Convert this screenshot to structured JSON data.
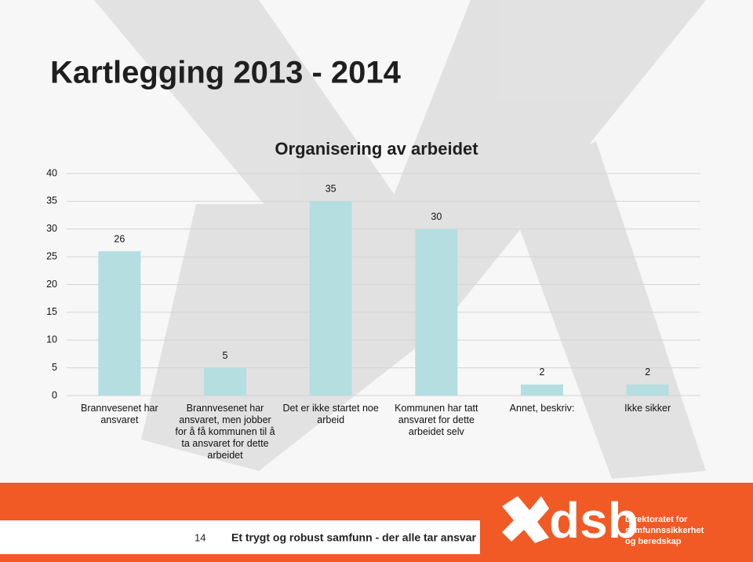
{
  "slide_title": "Kartlegging 2013 - 2014",
  "chart_data": {
    "type": "bar",
    "title": "Organisering av arbeidet",
    "categories": [
      "Brannvesenet har ansvaret",
      "Brannvesenet har ansvaret, men jobber for å få kommunen til å ta ansvaret for dette arbeidet",
      "Det er ikke startet noe arbeid",
      "Kommunen har tatt ansvaret for dette arbeidet selv",
      "Annet, beskriv:",
      "Ikke sikker"
    ],
    "values": [
      26,
      5,
      35,
      30,
      2,
      2
    ],
    "color": "#b4dee0",
    "ylim": [
      0,
      40
    ],
    "yticks": [
      0,
      5,
      10,
      15,
      20,
      25,
      30,
      35,
      40
    ],
    "grid": true
  },
  "footer": {
    "page_number": "14",
    "slogan": "Et trygt og robust samfunn - der alle tar ansvar",
    "logo_text": "dsb",
    "agency": [
      "Direktoratet for",
      "samfunnssikkerhet",
      "og beredskap"
    ]
  }
}
